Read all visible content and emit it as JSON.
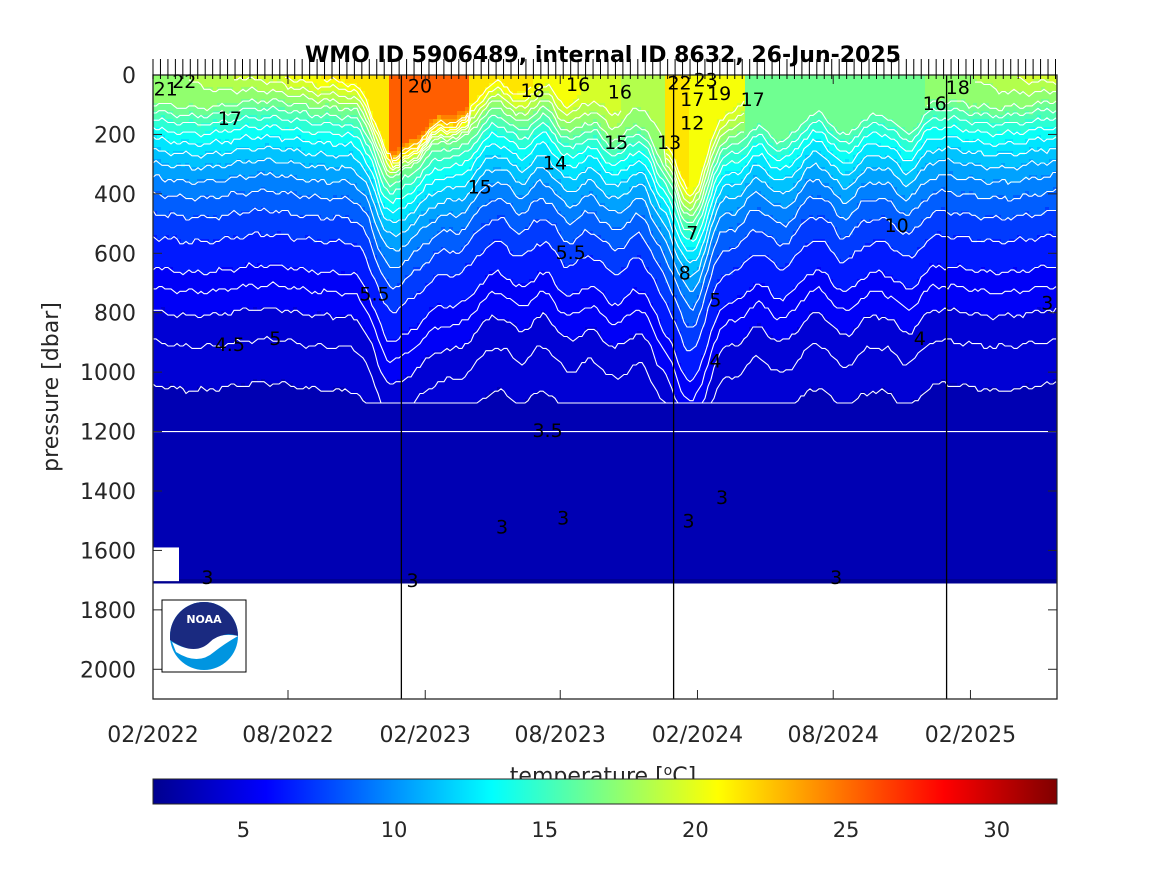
{
  "chart_data": {
    "type": "heatmap",
    "title": "WMO ID 5906489, internal ID 8632, 26-Jun-2025",
    "xlabel": "",
    "ylabel": "pressure [dbar]",
    "x_ticks": [
      "02/2022",
      "08/2022",
      "02/2023",
      "08/2023",
      "02/2024",
      "08/2024",
      "02/2025"
    ],
    "y_ticks": [
      0,
      200,
      400,
      600,
      800,
      1000,
      1200,
      1400,
      1600,
      1800,
      2000
    ],
    "ylim": [
      0,
      2100
    ],
    "y_reversed": true,
    "x_range": [
      "2022-02",
      "2025-07"
    ],
    "max_profile_depth_dbar": 1700,
    "year_dividers": [
      "2022-12-31",
      "2023-12-31",
      "2024-12-31"
    ],
    "colorbar": {
      "label": "temperature [°C]",
      "label_parts": {
        "prefix": "temperature [",
        "superscript": "o",
        "suffix": "C]"
      },
      "range": [
        2,
        32
      ],
      "ticks": [
        5,
        10,
        15,
        20,
        25,
        30
      ],
      "colormap": "jet"
    },
    "contour_labels": [
      {
        "text": "21",
        "x": "2022-02-18",
        "p": 45
      },
      {
        "text": "22",
        "x": "2022-03-15",
        "p": 20
      },
      {
        "text": "17",
        "x": "2022-05-15",
        "p": 145
      },
      {
        "text": "4.5",
        "x": "2022-05-15",
        "p": 905
      },
      {
        "text": "5",
        "x": "2022-07-15",
        "p": 885
      },
      {
        "text": "5.5",
        "x": "2022-11-25",
        "p": 735
      },
      {
        "text": "3",
        "x": "2022-04-15",
        "p": 1690
      },
      {
        "text": "3",
        "x": "2023-01-15",
        "p": 1700
      },
      {
        "text": "20",
        "x": "2023-01-25",
        "p": 35
      },
      {
        "text": "15",
        "x": "2023-04-15",
        "p": 375
      },
      {
        "text": "18",
        "x": "2023-06-25",
        "p": 50
      },
      {
        "text": "14",
        "x": "2023-07-25",
        "p": 295
      },
      {
        "text": "16",
        "x": "2023-08-25",
        "p": 30
      },
      {
        "text": "16",
        "x": "2023-10-20",
        "p": 55
      },
      {
        "text": "15",
        "x": "2023-10-15",
        "p": 225
      },
      {
        "text": "5.5",
        "x": "2023-08-15",
        "p": 595
      },
      {
        "text": "3.5",
        "x": "2023-07-15",
        "p": 1195
      },
      {
        "text": "3",
        "x": "2023-05-15",
        "p": 1520
      },
      {
        "text": "3",
        "x": "2023-08-05",
        "p": 1490
      },
      {
        "text": "13",
        "x": "2023-12-25",
        "p": 225
      },
      {
        "text": "22",
        "x": "2024-01-08",
        "p": 25
      },
      {
        "text": "23",
        "x": "2024-02-12",
        "p": 15
      },
      {
        "text": "17",
        "x": "2024-01-25",
        "p": 80
      },
      {
        "text": "19",
        "x": "2024-03-01",
        "p": 60
      },
      {
        "text": "17",
        "x": "2024-04-15",
        "p": 80
      },
      {
        "text": "12",
        "x": "2024-01-25",
        "p": 160
      },
      {
        "text": "7",
        "x": "2024-01-25",
        "p": 530
      },
      {
        "text": "8",
        "x": "2024-01-15",
        "p": 665
      },
      {
        "text": "5",
        "x": "2024-02-25",
        "p": 755
      },
      {
        "text": "4",
        "x": "2024-02-25",
        "p": 960
      },
      {
        "text": "3",
        "x": "2024-01-20",
        "p": 1500
      },
      {
        "text": "3",
        "x": "2024-03-05",
        "p": 1420
      },
      {
        "text": "3",
        "x": "2024-08-05",
        "p": 1690
      },
      {
        "text": "10",
        "x": "2024-10-25",
        "p": 505
      },
      {
        "text": "4",
        "x": "2024-11-25",
        "p": 885
      },
      {
        "text": "16",
        "x": "2024-12-15",
        "p": 95
      },
      {
        "text": "18",
        "x": "2025-01-15",
        "p": 40
      },
      {
        "text": "3",
        "x": "2025-05-15",
        "p": 765
      }
    ]
  }
}
